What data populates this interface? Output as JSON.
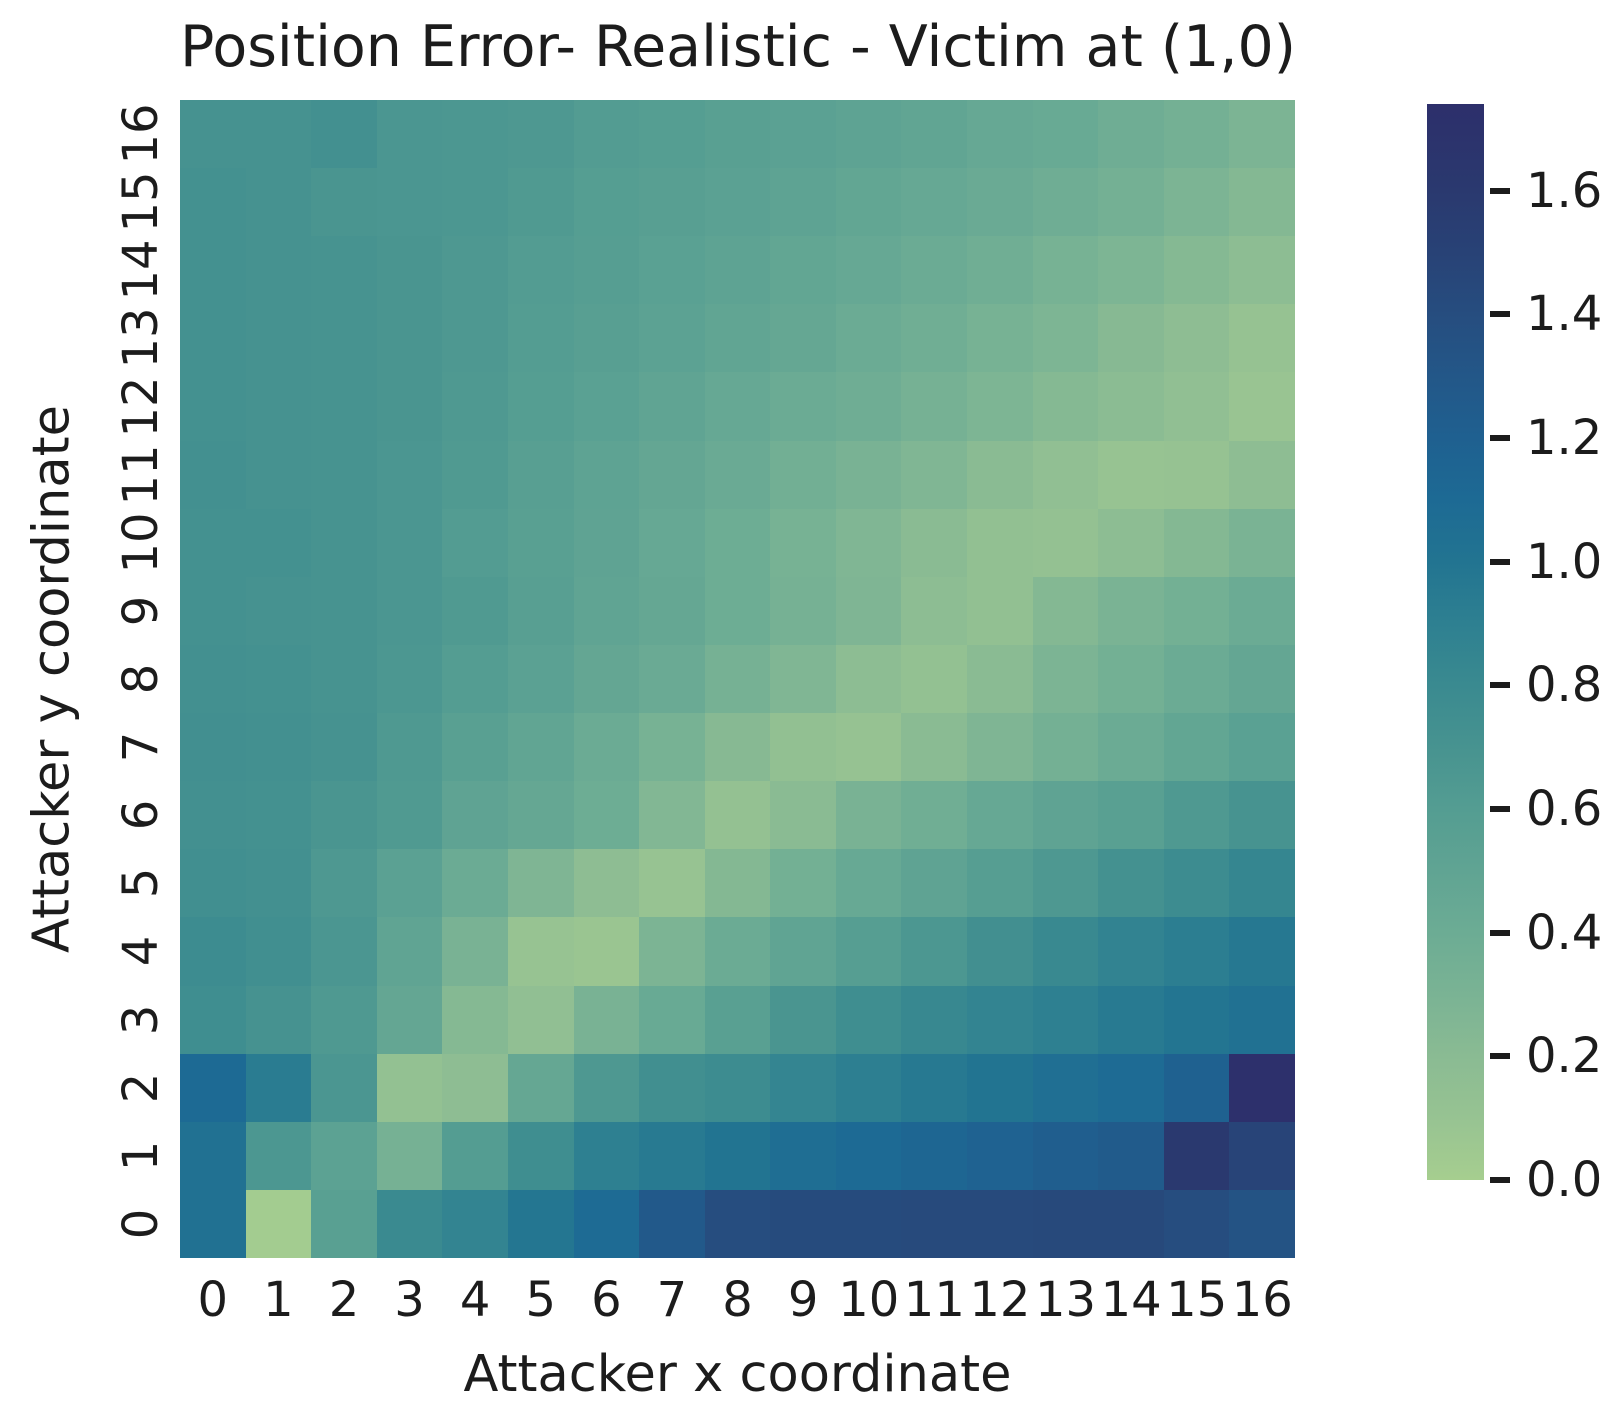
{
  "figure": {
    "title": "Position Error- Realistic - Victim at (1,0)",
    "xlabel": "Attacker x coordinate",
    "ylabel": "Attacker y coordinate"
  },
  "chart_data": {
    "type": "heatmap",
    "title": "Position Error- Realistic - Victim at (1,0)",
    "xlabel": "Attacker x coordinate",
    "ylabel": "Attacker y coordinate",
    "x_categories": [
      "0",
      "1",
      "2",
      "3",
      "4",
      "5",
      "6",
      "7",
      "8",
      "9",
      "10",
      "11",
      "12",
      "13",
      "14",
      "15",
      "16"
    ],
    "y_categories": [
      "0",
      "1",
      "2",
      "3",
      "4",
      "5",
      "6",
      "7",
      "8",
      "9",
      "10",
      "11",
      "12",
      "13",
      "14",
      "15",
      "16"
    ],
    "y_axis_note": "y=0 row is at the bottom of the plot; matrix_rows_y0_to_y16[j] is the row for Attacker y coordinate = j",
    "matrix_rows_y0_to_y16": [
      [
        1.03,
        0.02,
        0.56,
        0.8,
        0.86,
        0.98,
        1.09,
        1.28,
        1.4,
        1.42,
        1.42,
        1.43,
        1.43,
        1.44,
        1.44,
        1.4,
        1.34
      ],
      [
        1.03,
        0.66,
        0.53,
        0.33,
        0.6,
        0.76,
        0.9,
        0.95,
        1.0,
        1.06,
        1.1,
        1.14,
        1.18,
        1.22,
        1.26,
        1.6,
        1.48
      ],
      [
        1.1,
        0.93,
        0.67,
        0.13,
        0.17,
        0.46,
        0.65,
        0.75,
        0.78,
        0.85,
        0.91,
        0.96,
        1.0,
        1.05,
        1.09,
        1.19,
        1.72
      ],
      [
        0.76,
        0.71,
        0.64,
        0.47,
        0.23,
        0.15,
        0.31,
        0.43,
        0.56,
        0.68,
        0.76,
        0.82,
        0.86,
        0.9,
        0.95,
        0.99,
        1.03
      ],
      [
        0.78,
        0.75,
        0.67,
        0.5,
        0.31,
        0.1,
        0.08,
        0.29,
        0.41,
        0.5,
        0.58,
        0.66,
        0.74,
        0.81,
        0.87,
        0.92,
        0.97
      ],
      [
        0.75,
        0.73,
        0.65,
        0.54,
        0.41,
        0.27,
        0.17,
        0.1,
        0.24,
        0.35,
        0.44,
        0.51,
        0.58,
        0.65,
        0.72,
        0.78,
        0.84
      ],
      [
        0.73,
        0.72,
        0.68,
        0.63,
        0.51,
        0.46,
        0.39,
        0.25,
        0.12,
        0.2,
        0.31,
        0.37,
        0.45,
        0.51,
        0.56,
        0.64,
        0.7
      ],
      [
        0.74,
        0.73,
        0.71,
        0.64,
        0.56,
        0.49,
        0.41,
        0.32,
        0.22,
        0.14,
        0.11,
        0.2,
        0.27,
        0.34,
        0.41,
        0.48,
        0.55
      ],
      [
        0.73,
        0.72,
        0.7,
        0.66,
        0.6,
        0.54,
        0.47,
        0.42,
        0.33,
        0.26,
        0.18,
        0.13,
        0.2,
        0.29,
        0.35,
        0.41,
        0.47
      ],
      [
        0.72,
        0.71,
        0.7,
        0.67,
        0.63,
        0.57,
        0.5,
        0.46,
        0.39,
        0.33,
        0.27,
        0.18,
        0.14,
        0.24,
        0.3,
        0.35,
        0.41
      ],
      [
        0.72,
        0.72,
        0.7,
        0.67,
        0.61,
        0.56,
        0.51,
        0.45,
        0.39,
        0.32,
        0.26,
        0.2,
        0.14,
        0.12,
        0.18,
        0.24,
        0.3
      ],
      [
        0.73,
        0.71,
        0.7,
        0.67,
        0.63,
        0.57,
        0.52,
        0.47,
        0.42,
        0.36,
        0.31,
        0.26,
        0.2,
        0.15,
        0.1,
        0.11,
        0.17
      ],
      [
        0.72,
        0.71,
        0.7,
        0.68,
        0.64,
        0.59,
        0.55,
        0.5,
        0.45,
        0.41,
        0.38,
        0.33,
        0.28,
        0.23,
        0.19,
        0.15,
        0.09
      ],
      [
        0.72,
        0.71,
        0.7,
        0.68,
        0.65,
        0.6,
        0.57,
        0.53,
        0.49,
        0.46,
        0.41,
        0.37,
        0.32,
        0.28,
        0.22,
        0.17,
        0.11
      ],
      [
        0.72,
        0.71,
        0.7,
        0.68,
        0.65,
        0.61,
        0.58,
        0.55,
        0.52,
        0.48,
        0.45,
        0.41,
        0.37,
        0.32,
        0.28,
        0.23,
        0.18
      ],
      [
        0.72,
        0.71,
        0.68,
        0.67,
        0.66,
        0.63,
        0.59,
        0.57,
        0.54,
        0.52,
        0.48,
        0.45,
        0.42,
        0.38,
        0.34,
        0.29,
        0.24
      ],
      [
        0.71,
        0.71,
        0.73,
        0.67,
        0.66,
        0.65,
        0.61,
        0.59,
        0.56,
        0.54,
        0.52,
        0.49,
        0.45,
        0.43,
        0.38,
        0.34,
        0.29
      ]
    ],
    "colorbar": {
      "tick_labels": [
        "0.0",
        "0.2",
        "0.4",
        "0.6",
        "0.8",
        "1.0",
        "1.2",
        "1.4",
        "1.6"
      ],
      "tick_values": [
        0.0,
        0.2,
        0.4,
        0.6,
        0.8,
        1.0,
        1.2,
        1.4,
        1.6
      ],
      "vmin": 0.0,
      "vmax": 1.74,
      "position": "right"
    },
    "colormap": {
      "name": "crest",
      "stops": [
        {
          "v": 0.0,
          "color": "#a6ce8f"
        },
        {
          "v": 0.1,
          "color": "#97c392"
        },
        {
          "v": 0.2,
          "color": "#8abb93"
        },
        {
          "v": 0.3,
          "color": "#7ab394"
        },
        {
          "v": 0.4,
          "color": "#6cac94"
        },
        {
          "v": 0.5,
          "color": "#60a493"
        },
        {
          "v": 0.6,
          "color": "#549d92"
        },
        {
          "v": 0.7,
          "color": "#479390"
        },
        {
          "v": 0.8,
          "color": "#3a8a90"
        },
        {
          "v": 0.9,
          "color": "#2e8091"
        },
        {
          "v": 1.0,
          "color": "#227491"
        },
        {
          "v": 1.1,
          "color": "#1d6a94"
        },
        {
          "v": 1.2,
          "color": "#1f6090"
        },
        {
          "v": 1.3,
          "color": "#235788"
        },
        {
          "v": 1.4,
          "color": "#264d7f"
        },
        {
          "v": 1.5,
          "color": "#284276"
        },
        {
          "v": 1.6,
          "color": "#2a396f"
        },
        {
          "v": 1.74,
          "color": "#2d2f6b"
        }
      ]
    },
    "grid": false,
    "legend": false
  },
  "text_color": "#1c1c1c",
  "background_color": "#ffffff"
}
